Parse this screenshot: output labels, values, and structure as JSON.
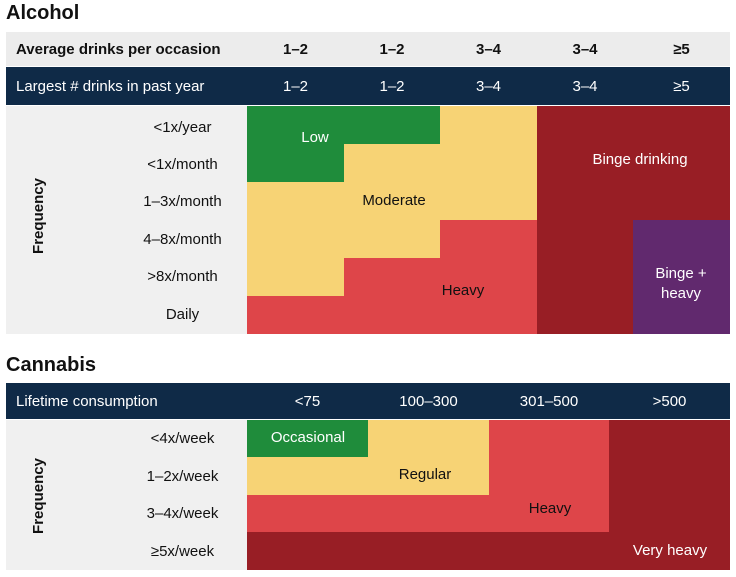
{
  "alcohol": {
    "title": "Alcohol",
    "header1": {
      "label": "Average drinks per occasion",
      "values": [
        "1–2",
        "1–2",
        "3–4",
        "3–4",
        "≥5"
      ]
    },
    "header2": {
      "label": "Largest # drinks in past year",
      "values": [
        "1–2",
        "1–2",
        "3–4",
        "3–4",
        "≥5"
      ]
    },
    "axis_label": "Frequency",
    "rows": [
      "<1x/year",
      "<1x/month",
      "1–3x/month",
      "4–8x/month",
      ">8x/month",
      "Daily"
    ],
    "zones": {
      "low": "Low",
      "moderate": "Moderate",
      "heavy": "Heavy",
      "binge": "Binge drinking",
      "binge_heavy": "Binge + heavy"
    }
  },
  "cannabis": {
    "title": "Cannabis",
    "header": {
      "label": "Lifetime consumption",
      "values": [
        "<75",
        "100–300",
        "301–500",
        ">500"
      ]
    },
    "axis_label": "Frequency",
    "rows": [
      "<4x/week",
      "1–2x/week",
      "3–4x/week",
      "≥5x/week"
    ],
    "zones": {
      "occasional": "Occasional",
      "regular": "Regular",
      "heavy": "Heavy",
      "very_heavy": "Very heavy"
    }
  },
  "colors": {
    "green": "#1f8c3b",
    "yellow": "#f7d375",
    "red": "#de4549",
    "darkred": "#981e25",
    "purple": "#61296e",
    "navy": "#0f2a47"
  }
}
